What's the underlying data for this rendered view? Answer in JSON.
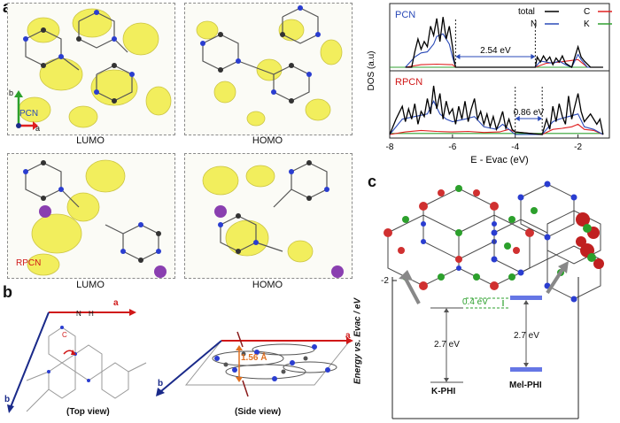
{
  "figure": {
    "panel_a": {
      "letter": "a",
      "pcn_tag": "PCN",
      "rpcn_tag": "RPCN",
      "axis_b": "b",
      "axis_a": "a",
      "captions": {
        "lumo_top": "LUMO",
        "homo_top": "HOMO",
        "lumo_bottom": "LUMO",
        "homo_bottom": "HOMO"
      }
    },
    "panel_b": {
      "letter": "b",
      "axis_a_top": "a",
      "axis_b_top": "b",
      "axis_a_side": "a",
      "axis_b_side": "b",
      "atom_n": "N",
      "atom_h": "H",
      "atom_c": "C",
      "distance": "1.56 Å",
      "top_view": "(Top view)",
      "side_view": "(Side view)"
    },
    "panel_c": {
      "letter": "c",
      "y_axis_label": "Energy vs. Evac / eV",
      "tick_minus2": "-2",
      "offset_label": "0.4 eV",
      "gap_kphi": "2.7 eV",
      "gap_melphi": "2.7 eV",
      "label_kphi": "K-PHI",
      "label_melphi": "Mel-PHI",
      "colors": {
        "offset": "#2ca02c",
        "melphi_band": "#4a5ee0"
      }
    }
  },
  "chart_data": {
    "type": "line",
    "title": "",
    "xlabel": "E - Evac (eV)",
    "ylabel": "DOS (a.u)",
    "xlim": [
      -8,
      -1
    ],
    "xticks": [
      -8,
      -6,
      -4,
      -2
    ],
    "legend": [
      "total",
      "C",
      "N",
      "K"
    ],
    "legend_colors": {
      "total": "#000000",
      "C": "#e02020",
      "N": "#2a4ab8",
      "K": "#30a030"
    },
    "panels": [
      {
        "name": "PCN",
        "label_color": "#2a4ab8",
        "gap_label": "2.54 eV",
        "gap": [
          -5.9,
          -3.36
        ],
        "series": [
          {
            "name": "total",
            "x": [
              -7.5,
              -7.3,
              -7.2,
              -7.1,
              -7.0,
              -6.9,
              -6.8,
              -6.7,
              -6.6,
              -6.5,
              -6.4,
              -6.3,
              -6.2,
              -6.1,
              -6.0,
              -5.95,
              -5.9,
              -3.36,
              -3.3,
              -3.2,
              -3.1,
              -3.0,
              -2.9,
              -2.8,
              -2.7,
              -2.6,
              -2.5,
              -2.4,
              -2.2,
              -2.0,
              -1.9,
              -1.8,
              -1.6,
              -1.3,
              -1.2
            ],
            "y": [
              0,
              0,
              0.3,
              0.55,
              0.35,
              0.5,
              0.4,
              0.8,
              0.62,
              0.95,
              0.5,
              0.98,
              0.55,
              0.8,
              0.4,
              0.15,
              0,
              0,
              0.2,
              0.1,
              0.22,
              0.12,
              0.2,
              0.05,
              0.18,
              0.1,
              0.22,
              0.08,
              0,
              0.4,
              0.2,
              0.12,
              0,
              0,
              0
            ]
          },
          {
            "name": "N",
            "x": [
              -7.5,
              -7.2,
              -7.0,
              -6.8,
              -6.6,
              -6.5,
              -6.3,
              -6.1,
              -6.0,
              -5.9,
              -3.36,
              -3.2,
              -3.0,
              -2.8,
              -2.6,
              -2.4,
              -2.2,
              -2.0,
              -1.9,
              -1.7,
              -1.2
            ],
            "y": [
              0,
              0.2,
              0.28,
              0.3,
              0.45,
              0.6,
              0.65,
              0.45,
              0.2,
              0,
              0,
              0.12,
              0.1,
              0.08,
              0.12,
              0.05,
              0,
              0.25,
              0.15,
              0,
              0
            ]
          },
          {
            "name": "C",
            "x": [
              -7.5,
              -7.0,
              -6.5,
              -6.0,
              -5.9,
              -3.36,
              -3.0,
              -2.6,
              -2.0,
              -1.9,
              -1.7,
              -1.2
            ],
            "y": [
              0,
              0.05,
              0.06,
              0.05,
              0,
              0,
              0.08,
              0.1,
              0.15,
              0.1,
              0,
              0
            ]
          },
          {
            "name": "K",
            "x": [
              -8,
              -1.2
            ],
            "y": [
              0,
              0
            ]
          }
        ]
      },
      {
        "name": "RPCN",
        "label_color": "#d01818",
        "gap_label": "0.86 eV",
        "gap": [
          -4.0,
          -3.14
        ],
        "series": [
          {
            "name": "total",
            "x": [
              -8,
              -7.8,
              -7.6,
              -7.5,
              -7.4,
              -7.3,
              -7.2,
              -7.1,
              -7.0,
              -6.9,
              -6.8,
              -6.7,
              -6.6,
              -6.5,
              -6.4,
              -6.3,
              -6.2,
              -6.1,
              -6.0,
              -5.9,
              -5.8,
              -5.7,
              -5.6,
              -5.5,
              -5.4,
              -5.3,
              -5.2,
              -5.1,
              -5.0,
              -4.9,
              -4.8,
              -4.7,
              -4.6,
              -4.5,
              -4.4,
              -4.3,
              -4.2,
              -4.1,
              -4.0,
              -3.14,
              -3.0,
              -2.9,
              -2.8,
              -2.7,
              -2.6,
              -2.5,
              -2.4,
              -2.3,
              -2.2,
              -2.1,
              -2.0,
              -1.9,
              -1.8,
              -1.6,
              -1.4,
              -1.3,
              -1.2
            ],
            "y": [
              0,
              0.3,
              0.55,
              0.25,
              0.5,
              0.3,
              0.6,
              0.2,
              0.45,
              0.35,
              0.7,
              0.4,
              0.95,
              0.5,
              0.8,
              0.3,
              0.65,
              0.4,
              0.5,
              0.2,
              0.55,
              0.3,
              0.65,
              0.25,
              0.5,
              0.7,
              0.3,
              0.45,
              0.2,
              0.4,
              0.15,
              0.35,
              0.1,
              0.25,
              0.45,
              0.12,
              0.3,
              0.1,
              0.05,
              0,
              0.3,
              0.1,
              0.55,
              0.25,
              0.6,
              0.35,
              0.2,
              0.75,
              0.3,
              0.55,
              0.8,
              0.45,
              0.25,
              0.4,
              0.2,
              0.3,
              0
            ]
          },
          {
            "name": "N",
            "x": [
              -8,
              -7.6,
              -7.2,
              -6.8,
              -6.6,
              -6.4,
              -6.2,
              -6.0,
              -5.6,
              -5.3,
              -5.0,
              -4.6,
              -4.4,
              -4.0,
              -3.14,
              -2.8,
              -2.6,
              -2.3,
              -2.0,
              -1.8,
              -1.5,
              -1.2
            ],
            "y": [
              0,
              0.3,
              0.35,
              0.4,
              0.65,
              0.4,
              0.3,
              0.25,
              0.3,
              0.35,
              0.15,
              0.1,
              0.2,
              0,
              0,
              0.25,
              0.3,
              0.35,
              0.4,
              0.15,
              0.1,
              0
            ]
          },
          {
            "name": "C",
            "x": [
              -8,
              -7.5,
              -7.0,
              -6.5,
              -6.0,
              -5.5,
              -5.0,
              -4.5,
              -4.2,
              -4.0,
              -3.14,
              -2.8,
              -2.5,
              -2.2,
              -2.0,
              -1.8,
              -1.5,
              -1.2
            ],
            "y": [
              0,
              0.05,
              0.08,
              0.06,
              0.05,
              0.06,
              0.04,
              0.05,
              0.1,
              0.05,
              0,
              0.1,
              0.12,
              0.15,
              0.2,
              0.1,
              0.08,
              0
            ]
          },
          {
            "name": "K",
            "x": [
              -8,
              -1.2
            ],
            "y": [
              0.02,
              0.02
            ]
          }
        ]
      }
    ]
  }
}
